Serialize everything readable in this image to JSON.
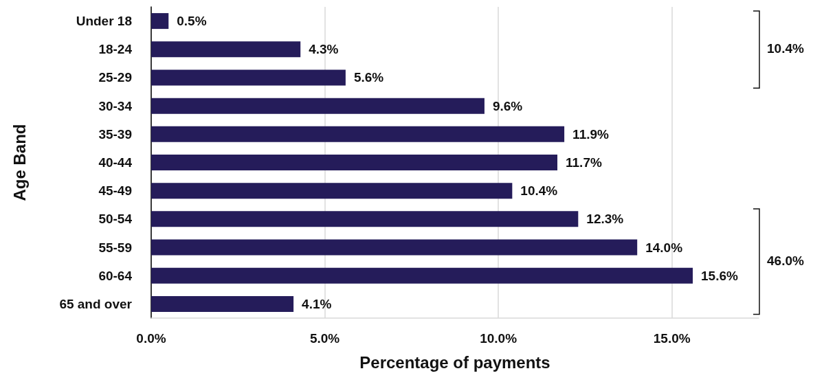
{
  "chart_data": {
    "type": "bar",
    "orientation": "horizontal",
    "xlabel": "Percentage of payments",
    "ylabel": "Age Band",
    "categories": [
      "Under 18",
      "18-24",
      "25-29",
      "30-34",
      "35-39",
      "40-44",
      "45-49",
      "50-54",
      "55-59",
      "60-64",
      "65 and over"
    ],
    "values": [
      0.5,
      4.3,
      5.6,
      9.6,
      11.9,
      11.7,
      10.4,
      12.3,
      14.0,
      15.6,
      4.1
    ],
    "value_labels": [
      "0.5%",
      "4.3%",
      "5.6%",
      "9.6%",
      "11.9%",
      "11.7%",
      "10.4%",
      "12.3%",
      "14.0%",
      "15.6%",
      "4.1%"
    ],
    "color": "#251c5a",
    "xticks": [
      {
        "value": 0,
        "label": "0.0%"
      },
      {
        "value": 5,
        "label": "5.0%"
      },
      {
        "value": 10,
        "label": "10.0%"
      },
      {
        "value": 15,
        "label": "15.0%"
      }
    ],
    "xlim": [
      0,
      17.5
    ],
    "grid": "x",
    "annotations": [
      "10.4%",
      "46.0%"
    ]
  }
}
